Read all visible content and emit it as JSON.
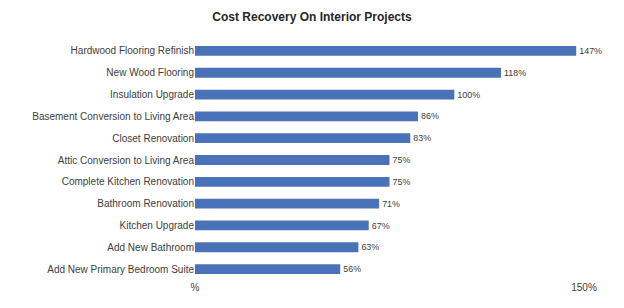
{
  "chart_data": {
    "type": "bar",
    "orientation": "horizontal",
    "title": "Cost Recovery On Interior Projects",
    "categories": [
      "Hardwood Flooring Refinish",
      "New Wood Flooring",
      "Insulation Upgrade",
      "Basement Conversion to Living Area",
      "Closet Renovation",
      "Attic Conversion to Living Area",
      "Complete Kitchen Renovation",
      "Bathroom Renovation",
      "Kitchen Upgrade",
      "Add New Bathroom",
      "Add New Primary Bedroom Suite"
    ],
    "values": [
      147,
      118,
      100,
      86,
      83,
      75,
      75,
      71,
      67,
      63,
      56
    ],
    "value_labels": [
      "147%",
      "118%",
      "100%",
      "86%",
      "83%",
      "75%",
      "75%",
      "71%",
      "67%",
      "63%",
      "56%"
    ],
    "color": "#4a72b8",
    "xlim": [
      0,
      150
    ],
    "xticks": [
      {
        "value": 0,
        "label": "%"
      },
      {
        "value": 150,
        "label": "150%"
      }
    ],
    "grid": false,
    "data_labels": true
  }
}
